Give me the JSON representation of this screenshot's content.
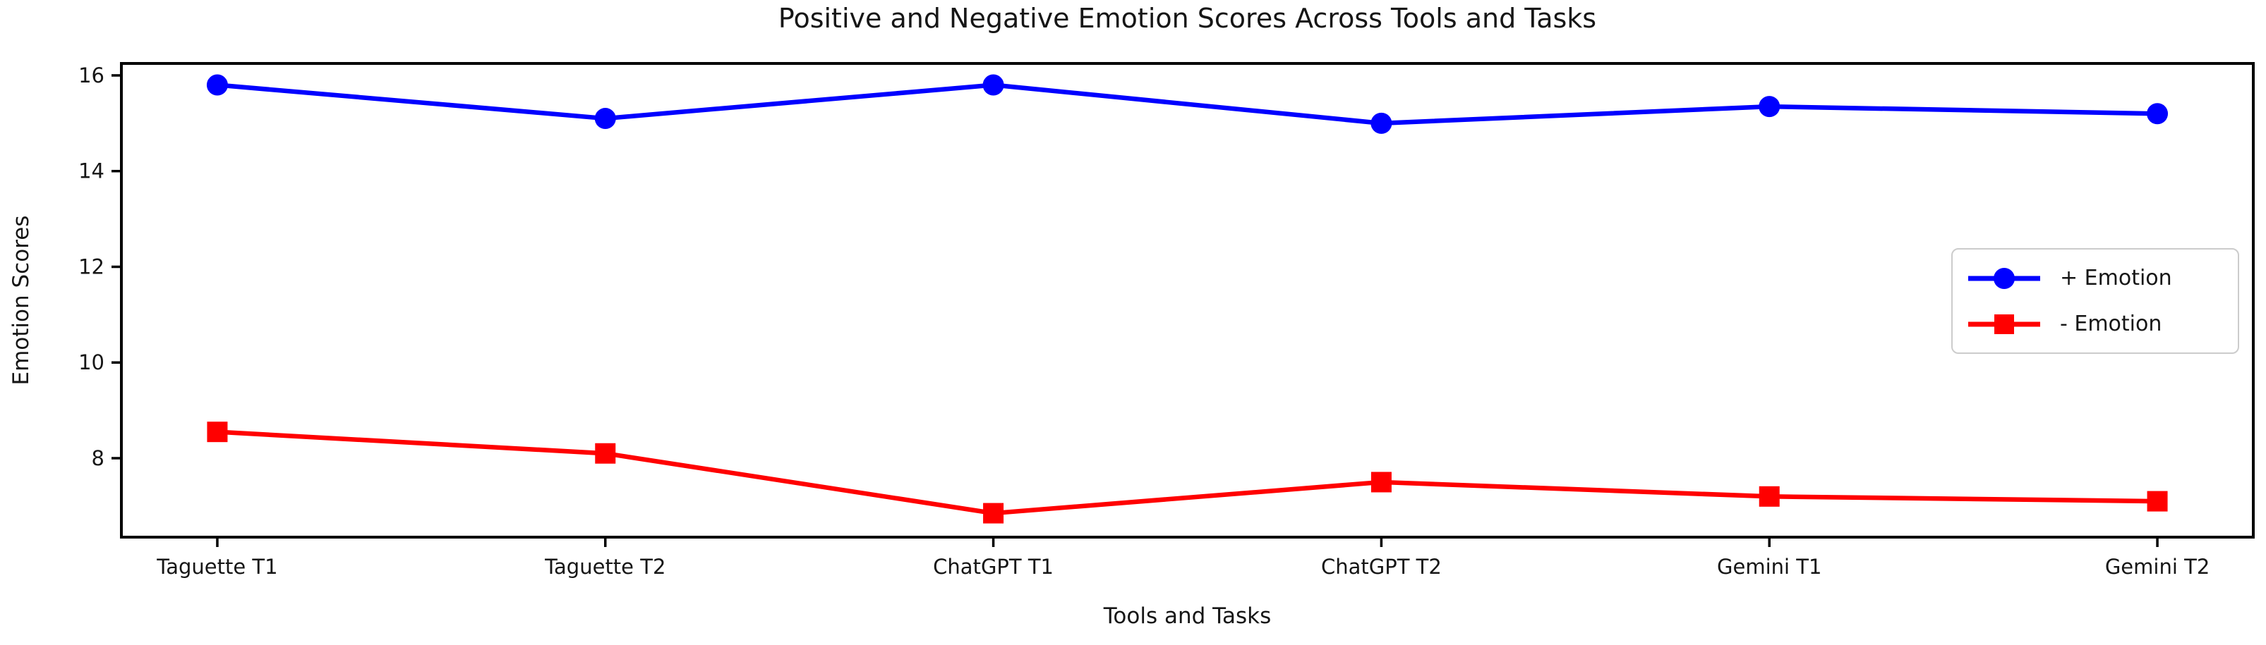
{
  "chart_data": {
    "type": "line",
    "title": "Positive and Negative Emotion Scores Across Tools and Tasks",
    "xlabel": "Tools and Tasks",
    "ylabel": "Emotion Scores",
    "categories": [
      "Taguette T1",
      "Taguette T2",
      "ChatGPT T1",
      "ChatGPT T2",
      "Gemini T1",
      "Gemini T2"
    ],
    "series": [
      {
        "name": "+ Emotion",
        "color": "#0000FF",
        "marker": "circle",
        "values": [
          15.8,
          15.1,
          15.8,
          15.0,
          15.35,
          15.2
        ]
      },
      {
        "name": "- Emotion",
        "color": "#FF0000",
        "marker": "square",
        "values": [
          8.55,
          8.1,
          6.85,
          7.5,
          7.2,
          7.1
        ]
      }
    ],
    "yticks": [
      "16",
      "14",
      "12",
      "10",
      "8"
    ],
    "ytick_values": [
      16,
      14,
      12,
      10,
      8
    ],
    "ylim": [
      6.35,
      16.25
    ],
    "grid": false,
    "legend_position": "upper right inside",
    "axis_color": "#000000",
    "background": "#FFFFFF"
  }
}
